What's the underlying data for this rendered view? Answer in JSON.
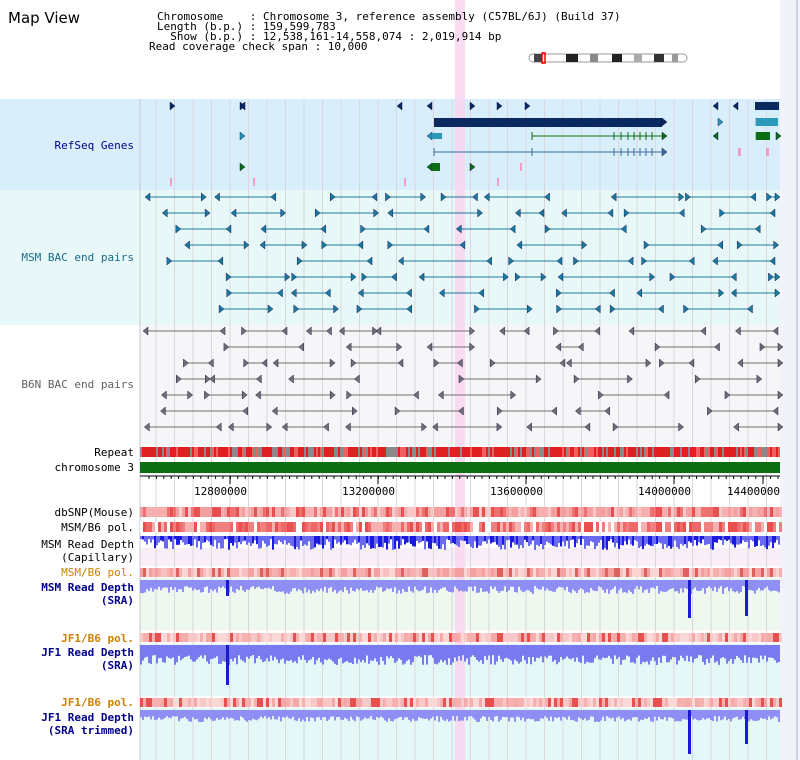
{
  "header": {
    "title": "Map View",
    "line1": "Chromosome    : Chromosome 3, reference assembly (C57BL/6J) (Build 37)",
    "line2": "Length (b.p.) : 159,599,783",
    "line3": "  Show (b.p.) : 12,538,161-14,558,074 : 2,019,914 bp",
    "line4": "Read coverage check span : 10,000"
  },
  "tracks": {
    "refseq": "RefSeq Genes",
    "msm_bac": "MSM BAC end pairs",
    "b6n_bac": "B6N BAC end pairs",
    "repeat": "Repeat",
    "chromosome": "chromosome 3",
    "dbsnp": "dbSNP(Mouse)",
    "msm_pol1": "MSM/B6 pol.",
    "msm_depth_cap_1": "MSM Read Depth",
    "msm_depth_cap_2": "(Capillary)",
    "msm_pol2": "MSM/B6 pol.",
    "msm_depth_sra_1": "MSM Read Depth",
    "msm_depth_sra_2": "(SRA)",
    "jf1_pol1": "JF1/B6 pol.",
    "jf1_depth_sra_1": "JF1 Read Depth",
    "jf1_depth_sra_2": "(SRA)",
    "jf1_pol2": "JF1/B6 pol.",
    "jf1_depth_tr_1": "JF1 Read Depth",
    "jf1_depth_tr_2": "(SRA trimmed)"
  },
  "axis": {
    "ticks": [
      "12800000",
      "13200000",
      "13600000",
      "14000000",
      "14400000"
    ]
  },
  "colors": {
    "refseq_bg": "#d8eefa",
    "msm_bac_bg": "#e8f8f8",
    "b6n_bg": "#f6f6f8",
    "highlight": "#f8d6f0",
    "dark_blue": "#0a2a60",
    "teal": "#1b7a8e",
    "green": "#0b6e12",
    "repeat_red": "#e02020"
  }
}
